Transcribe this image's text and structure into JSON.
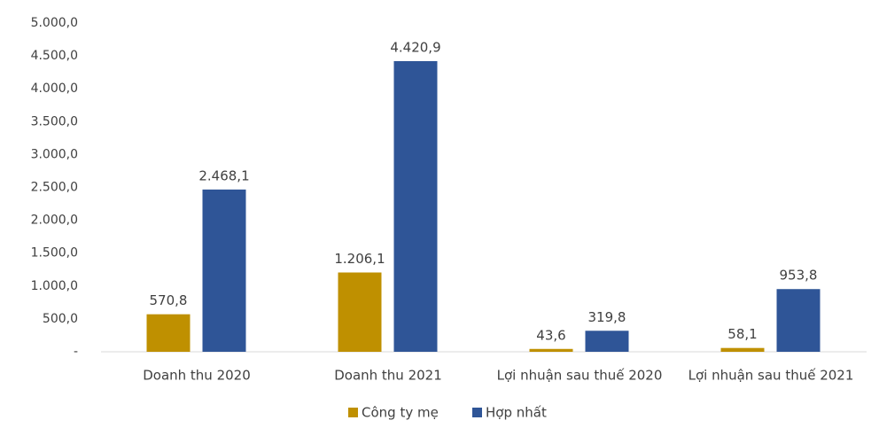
{
  "chart_data": {
    "type": "bar",
    "categories": [
      "Doanh thu 2020",
      "Doanh thu 2021",
      "Lợi nhuận sau thuế 2020",
      "Lợi nhuận sau thuế 2021"
    ],
    "series": [
      {
        "name": "Công ty mẹ",
        "color": "#bf9000",
        "values": [
          570.8,
          1206.1,
          43.6,
          58.1
        ],
        "value_labels": [
          "570,8",
          "1.206,1",
          "43,6",
          "58,1"
        ]
      },
      {
        "name": "Hợp nhất",
        "color": "#2f5597",
        "values": [
          2468.1,
          4420.9,
          319.8,
          953.8
        ],
        "value_labels": [
          "2.468,1",
          "4.420,9",
          "319,8",
          "953,8"
        ]
      }
    ],
    "ylim": [
      0,
      5000
    ],
    "yticks": [
      {
        "value": 0,
        "label": "-"
      },
      {
        "value": 500,
        "label": "500,0"
      },
      {
        "value": 1000,
        "label": "1.000,0"
      },
      {
        "value": 1500,
        "label": "1.500,0"
      },
      {
        "value": 2000,
        "label": "2.000,0"
      },
      {
        "value": 2500,
        "label": "2.500,0"
      },
      {
        "value": 3000,
        "label": "3.000,0"
      },
      {
        "value": 3500,
        "label": "3.500,0"
      },
      {
        "value": 4000,
        "label": "4.000,0"
      },
      {
        "value": 4500,
        "label": "4.500,0"
      },
      {
        "value": 5000,
        "label": "5.000,0"
      }
    ],
    "legend": "bottom"
  }
}
